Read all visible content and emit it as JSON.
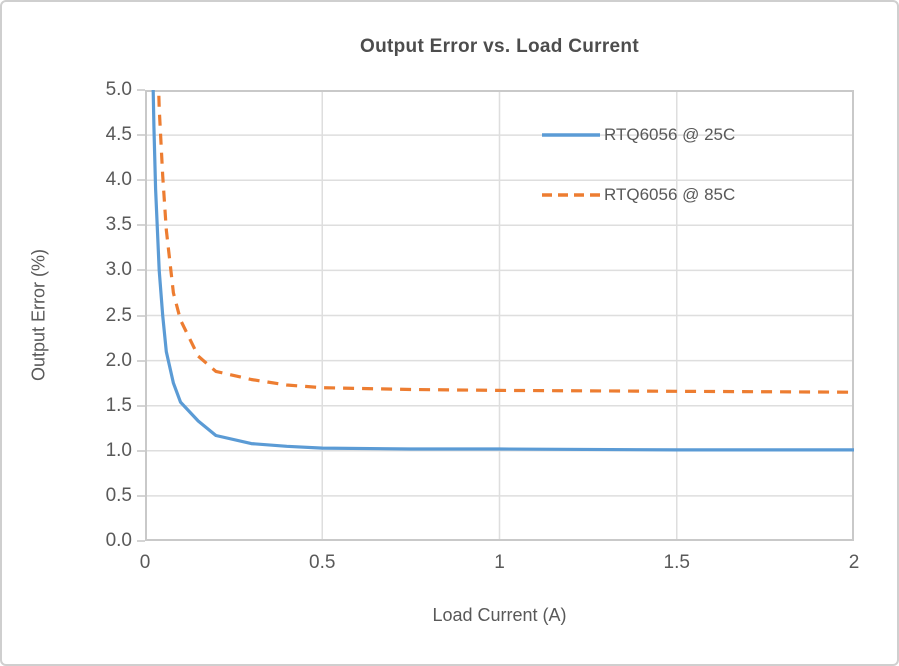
{
  "chart_data": {
    "type": "line",
    "title": "Output Error vs. Load Current",
    "xlabel": "Load Current (A)",
    "ylabel": "Output Error (%)",
    "xlim": [
      0,
      2
    ],
    "ylim": [
      0,
      5
    ],
    "grid": true,
    "legend_position": "inside-top-right",
    "xticks": {
      "values": [
        0,
        0.5,
        1,
        1.5,
        2
      ],
      "labels": [
        "0",
        "0.5",
        "1",
        "1.5",
        "2"
      ]
    },
    "yticks": {
      "values": [
        0,
        0.5,
        1,
        1.5,
        2,
        2.5,
        3,
        3.5,
        4,
        4.5,
        5
      ],
      "labels": [
        "0.0",
        "0.5",
        "1.0",
        "1.5",
        "2.0",
        "2.5",
        "3.0",
        "3.5",
        "4.0",
        "4.5",
        "5.0"
      ]
    },
    "colors": {
      "text": "#595959",
      "gridline": "#dedede",
      "axis_border": "#c9c9c9"
    },
    "series": [
      {
        "name": "RTQ6056 @ 25C",
        "color": "#5B9BD5",
        "style": "solid",
        "points": [
          [
            0.02,
            5.6
          ],
          [
            0.025,
            4.6
          ],
          [
            0.03,
            3.9
          ],
          [
            0.04,
            3.0
          ],
          [
            0.05,
            2.5
          ],
          [
            0.06,
            2.1
          ],
          [
            0.08,
            1.75
          ],
          [
            0.1,
            1.54
          ],
          [
            0.15,
            1.33
          ],
          [
            0.2,
            1.17
          ],
          [
            0.3,
            1.08
          ],
          [
            0.4,
            1.05
          ],
          [
            0.5,
            1.03
          ],
          [
            0.75,
            1.02
          ],
          [
            1.0,
            1.02
          ],
          [
            1.5,
            1.01
          ],
          [
            2.0,
            1.01
          ]
        ]
      },
      {
        "name": "RTQ6056 @ 85C",
        "color": "#ED7D31",
        "style": "dashed",
        "points": [
          [
            0.03,
            6.2
          ],
          [
            0.04,
            4.8
          ],
          [
            0.05,
            4.05
          ],
          [
            0.06,
            3.45
          ],
          [
            0.08,
            2.75
          ],
          [
            0.1,
            2.45
          ],
          [
            0.15,
            2.05
          ],
          [
            0.2,
            1.88
          ],
          [
            0.3,
            1.79
          ],
          [
            0.4,
            1.73
          ],
          [
            0.5,
            1.7
          ],
          [
            0.75,
            1.68
          ],
          [
            1.0,
            1.67
          ],
          [
            1.5,
            1.66
          ],
          [
            2.0,
            1.65
          ]
        ]
      }
    ]
  }
}
